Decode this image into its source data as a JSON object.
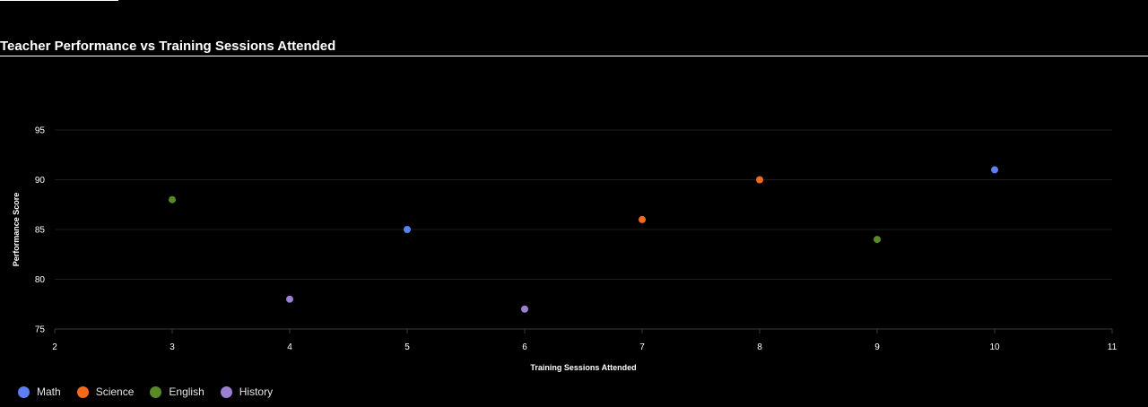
{
  "chart_data": {
    "type": "scatter",
    "title": "Teacher Performance vs Training Sessions Attended",
    "xlabel": "Training Sessions Attended",
    "ylabel": "Performance Score",
    "xlim": [
      2,
      11
    ],
    "ylim": [
      75,
      95
    ],
    "x_ticks": [
      2,
      3,
      4,
      5,
      6,
      7,
      8,
      9,
      10,
      11
    ],
    "y_ticks": [
      75,
      80,
      85,
      90,
      95
    ],
    "grid": true,
    "legend_position": "bottom-left",
    "series": [
      {
        "name": "Math",
        "color": "#5b7ef0",
        "points": [
          {
            "x": 5,
            "y": 85
          },
          {
            "x": 10,
            "y": 91
          }
        ]
      },
      {
        "name": "Science",
        "color": "#f26b1d",
        "points": [
          {
            "x": 7,
            "y": 86
          },
          {
            "x": 8,
            "y": 90
          }
        ]
      },
      {
        "name": "English",
        "color": "#5a8a26",
        "points": [
          {
            "x": 3,
            "y": 88
          },
          {
            "x": 9,
            "y": 84
          }
        ]
      },
      {
        "name": "History",
        "color": "#9b7fd1",
        "points": [
          {
            "x": 4,
            "y": 78
          },
          {
            "x": 6,
            "y": 77
          }
        ]
      }
    ]
  }
}
